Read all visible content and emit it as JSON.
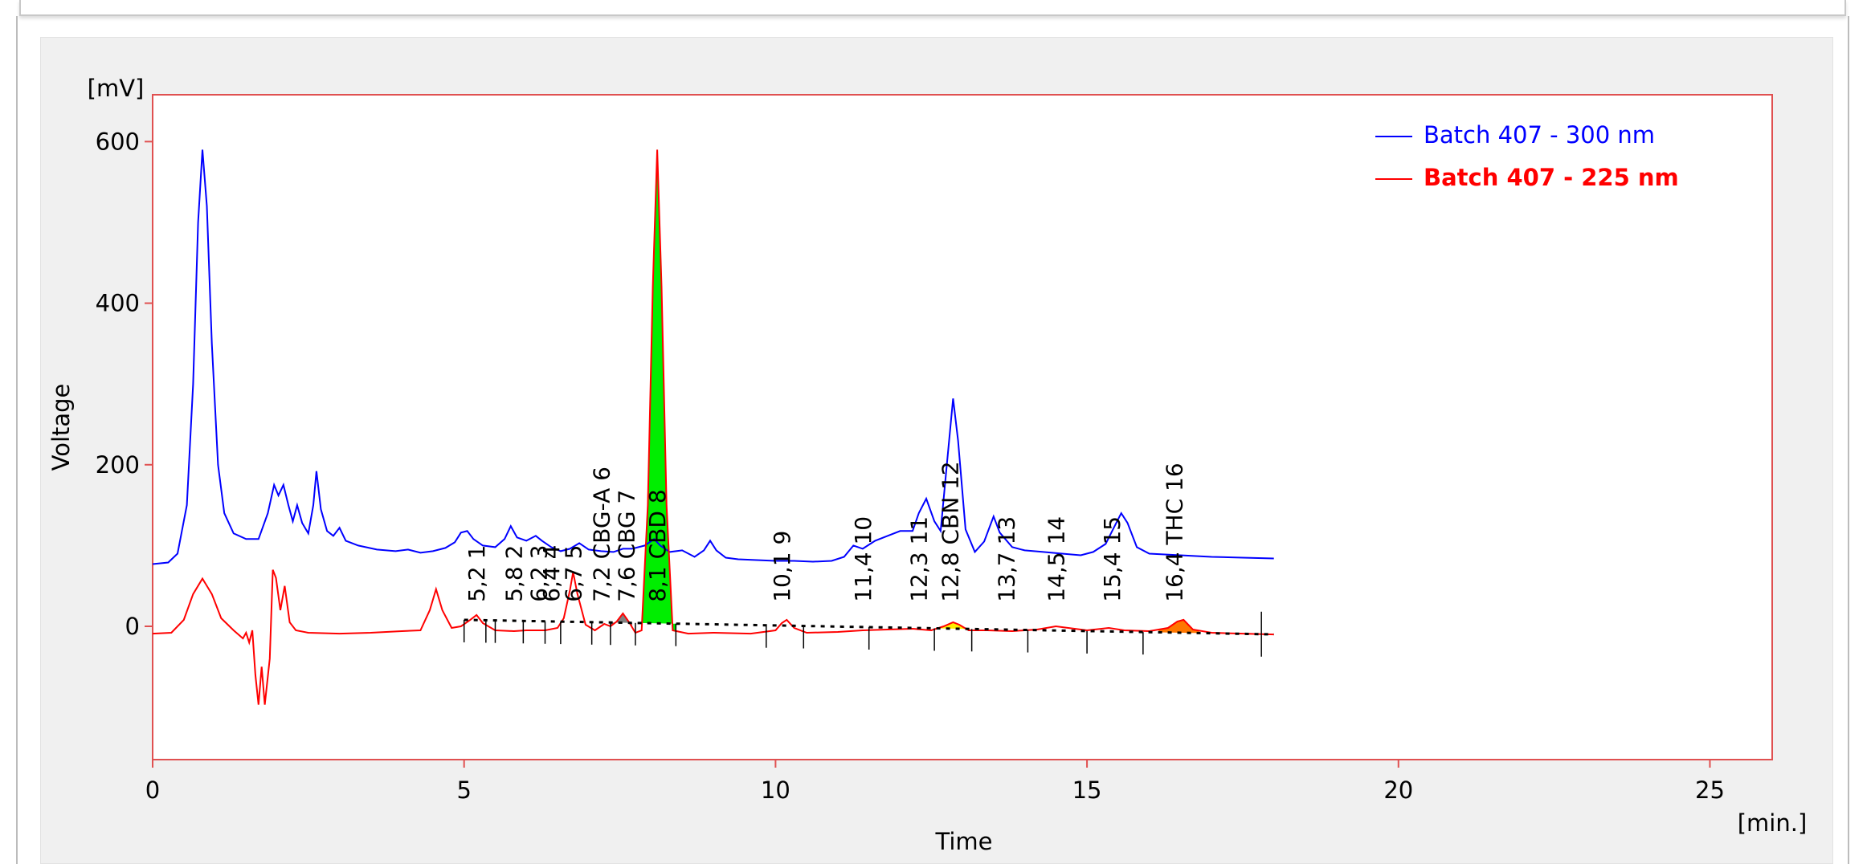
{
  "chart_data": {
    "type": "line",
    "xlabel": "Time",
    "ylabel": "Voltage",
    "x_unit": "[min.]",
    "y_unit": "[mV]",
    "xlim": [
      0,
      26
    ],
    "ylim": [
      -165,
      658
    ],
    "xticks": [
      0,
      5,
      10,
      15,
      20,
      25
    ],
    "yticks": [
      0,
      200,
      400,
      600
    ],
    "grid": false,
    "legend_position": "top-right",
    "series": [
      {
        "name": "Batch 407 - 300 nm",
        "color": "#0000ff",
        "points": [
          [
            0,
            77
          ],
          [
            0.25,
            79
          ],
          [
            0.4,
            90
          ],
          [
            0.55,
            150
          ],
          [
            0.65,
            300
          ],
          [
            0.73,
            500
          ],
          [
            0.8,
            590
          ],
          [
            0.87,
            520
          ],
          [
            0.95,
            350
          ],
          [
            1.05,
            200
          ],
          [
            1.15,
            140
          ],
          [
            1.3,
            115
          ],
          [
            1.5,
            108
          ],
          [
            1.7,
            108
          ],
          [
            1.85,
            140
          ],
          [
            1.95,
            175
          ],
          [
            2.02,
            162
          ],
          [
            2.1,
            175
          ],
          [
            2.18,
            150
          ],
          [
            2.25,
            130
          ],
          [
            2.32,
            150
          ],
          [
            2.4,
            128
          ],
          [
            2.5,
            115
          ],
          [
            2.58,
            150
          ],
          [
            2.63,
            192
          ],
          [
            2.7,
            145
          ],
          [
            2.8,
            118
          ],
          [
            2.9,
            112
          ],
          [
            3,
            122
          ],
          [
            3.1,
            106
          ],
          [
            3.3,
            100
          ],
          [
            3.6,
            95
          ],
          [
            3.9,
            93
          ],
          [
            4.1,
            95
          ],
          [
            4.3,
            91
          ],
          [
            4.5,
            93
          ],
          [
            4.7,
            97
          ],
          [
            4.85,
            104
          ],
          [
            4.95,
            116
          ],
          [
            5.05,
            118
          ],
          [
            5.15,
            108
          ],
          [
            5.3,
            100
          ],
          [
            5.5,
            98
          ],
          [
            5.65,
            108
          ],
          [
            5.75,
            124
          ],
          [
            5.85,
            110
          ],
          [
            6,
            106
          ],
          [
            6.15,
            112
          ],
          [
            6.25,
            106
          ],
          [
            6.4,
            98
          ],
          [
            6.55,
            93
          ],
          [
            6.7,
            96
          ],
          [
            6.85,
            103
          ],
          [
            7,
            95
          ],
          [
            7.2,
            93
          ],
          [
            7.4,
            92
          ],
          [
            7.55,
            96
          ],
          [
            7.7,
            96
          ],
          [
            7.9,
            100
          ],
          [
            8.05,
            108
          ],
          [
            8.15,
            100
          ],
          [
            8.3,
            92
          ],
          [
            8.5,
            94
          ],
          [
            8.7,
            86
          ],
          [
            8.85,
            94
          ],
          [
            8.95,
            106
          ],
          [
            9.05,
            94
          ],
          [
            9.2,
            85
          ],
          [
            9.4,
            83
          ],
          [
            9.7,
            82
          ],
          [
            10,
            81
          ],
          [
            10.3,
            81
          ],
          [
            10.6,
            80
          ],
          [
            10.9,
            81
          ],
          [
            11.1,
            86
          ],
          [
            11.25,
            100
          ],
          [
            11.4,
            96
          ],
          [
            11.6,
            106
          ],
          [
            11.8,
            112
          ],
          [
            12.0,
            118
          ],
          [
            12.2,
            118
          ],
          [
            12.3,
            140
          ],
          [
            12.42,
            158
          ],
          [
            12.55,
            130
          ],
          [
            12.65,
            118
          ],
          [
            12.75,
            200
          ],
          [
            12.85,
            282
          ],
          [
            12.93,
            230
          ],
          [
            13.05,
            120
          ],
          [
            13.2,
            92
          ],
          [
            13.35,
            105
          ],
          [
            13.5,
            136
          ],
          [
            13.6,
            116
          ],
          [
            13.8,
            98
          ],
          [
            14,
            94
          ],
          [
            14.3,
            92
          ],
          [
            14.6,
            90
          ],
          [
            14.9,
            88
          ],
          [
            15.1,
            92
          ],
          [
            15.3,
            102
          ],
          [
            15.45,
            125
          ],
          [
            15.55,
            140
          ],
          [
            15.65,
            128
          ],
          [
            15.8,
            98
          ],
          [
            16,
            90
          ],
          [
            16.5,
            88
          ],
          [
            17,
            86
          ],
          [
            17.5,
            85
          ],
          [
            18,
            84
          ]
        ]
      },
      {
        "name": "Batch 407 - 225 nm",
        "color": "#ff0000",
        "points": [
          [
            0,
            -9
          ],
          [
            0.3,
            -8
          ],
          [
            0.5,
            8
          ],
          [
            0.65,
            40
          ],
          [
            0.8,
            59
          ],
          [
            0.95,
            40
          ],
          [
            1.1,
            10
          ],
          [
            1.3,
            -5
          ],
          [
            1.45,
            -15
          ],
          [
            1.5,
            -8
          ],
          [
            1.55,
            -20
          ],
          [
            1.6,
            -5
          ],
          [
            1.65,
            -60
          ],
          [
            1.7,
            -97
          ],
          [
            1.75,
            -50
          ],
          [
            1.8,
            -97
          ],
          [
            1.88,
            -40
          ],
          [
            1.93,
            70
          ],
          [
            1.98,
            60
          ],
          [
            2.05,
            20
          ],
          [
            2.12,
            50
          ],
          [
            2.2,
            5
          ],
          [
            2.3,
            -5
          ],
          [
            2.5,
            -8
          ],
          [
            3,
            -9
          ],
          [
            3.5,
            -8
          ],
          [
            4,
            -6
          ],
          [
            4.3,
            -5
          ],
          [
            4.45,
            20
          ],
          [
            4.55,
            46
          ],
          [
            4.65,
            20
          ],
          [
            4.8,
            -2
          ],
          [
            4.95,
            0
          ],
          [
            5.1,
            8
          ],
          [
            5.2,
            14
          ],
          [
            5.3,
            4
          ],
          [
            5.5,
            -5
          ],
          [
            5.8,
            -6
          ],
          [
            6,
            -5
          ],
          [
            6.3,
            -5
          ],
          [
            6.5,
            -2
          ],
          [
            6.6,
            10
          ],
          [
            6.7,
            45
          ],
          [
            6.75,
            67
          ],
          [
            6.82,
            40
          ],
          [
            6.95,
            2
          ],
          [
            7.1,
            -5
          ],
          [
            7.25,
            3
          ],
          [
            7.35,
            0
          ],
          [
            7.45,
            6
          ],
          [
            7.55,
            16
          ],
          [
            7.65,
            5
          ],
          [
            7.75,
            -8
          ],
          [
            7.85,
            -5
          ],
          [
            7.95,
            150
          ],
          [
            8.03,
            420
          ],
          [
            8.1,
            590
          ],
          [
            8.17,
            420
          ],
          [
            8.25,
            150
          ],
          [
            8.35,
            -5
          ],
          [
            8.6,
            -9
          ],
          [
            9,
            -8
          ],
          [
            9.6,
            -9
          ],
          [
            10,
            -5
          ],
          [
            10.1,
            4
          ],
          [
            10.18,
            8
          ],
          [
            10.3,
            -2
          ],
          [
            10.5,
            -8
          ],
          [
            11,
            -7
          ],
          [
            11.4,
            -5
          ],
          [
            11.8,
            -4
          ],
          [
            12.2,
            -3
          ],
          [
            12.5,
            -5
          ],
          [
            12.7,
            0
          ],
          [
            12.85,
            5
          ],
          [
            12.95,
            2
          ],
          [
            13.1,
            -5
          ],
          [
            13.4,
            -5
          ],
          [
            13.8,
            -6
          ],
          [
            14.2,
            -4
          ],
          [
            14.5,
            0
          ],
          [
            14.7,
            -2
          ],
          [
            15,
            -5
          ],
          [
            15.35,
            -2
          ],
          [
            15.6,
            -5
          ],
          [
            16.0,
            -6
          ],
          [
            16.3,
            -2
          ],
          [
            16.45,
            6
          ],
          [
            16.55,
            8
          ],
          [
            16.7,
            -4
          ],
          [
            17,
            -8
          ],
          [
            17.5,
            -9
          ],
          [
            18,
            -10
          ]
        ]
      }
    ],
    "shaded_peaks": [
      {
        "start": 7.35,
        "end": 7.7,
        "color": "#808080"
      },
      {
        "start": 7.85,
        "end": 8.4,
        "color": "#00ee00"
      },
      {
        "start": 12.6,
        "end": 13.1,
        "color": "#ffee00"
      },
      {
        "start": 16.15,
        "end": 16.8,
        "color": "#ff7700"
      }
    ],
    "baseline": {
      "start": 5.0,
      "end": 18.0,
      "y_start": 8,
      "y_end": -10
    },
    "integration_marks": [
      5.0,
      5.35,
      5.5,
      5.95,
      6.3,
      6.55,
      7.05,
      7.35,
      7.75,
      8.4,
      9.85,
      10.45,
      11.5,
      12.55,
      13.15,
      14.05,
      15.0,
      15.9,
      17.8
    ],
    "peak_labels": [
      {
        "x": 5.2,
        "text": "5,2   1"
      },
      {
        "x": 5.8,
        "text": "5,8   2"
      },
      {
        "x": 6.2,
        "text": "6,2   3"
      },
      {
        "x": 6.4,
        "text": "6,4   4"
      },
      {
        "x": 6.75,
        "text": "6,7   5"
      },
      {
        "x": 7.2,
        "text": "7,2 CBG-A  6"
      },
      {
        "x": 7.6,
        "text": "7,6 CBG  7"
      },
      {
        "x": 8.1,
        "text": "8,1 CBD  8"
      },
      {
        "x": 10.1,
        "text": "10,1   9"
      },
      {
        "x": 11.4,
        "text": "11,4   10"
      },
      {
        "x": 12.3,
        "text": "12,3   11"
      },
      {
        "x": 12.8,
        "text": "12,8 CBN  12"
      },
      {
        "x": 13.7,
        "text": "13,7   13"
      },
      {
        "x": 14.5,
        "text": "14,5   14"
      },
      {
        "x": 15.4,
        "text": "15,4   15"
      },
      {
        "x": 16.4,
        "text": "16,4 THC  16"
      }
    ]
  }
}
